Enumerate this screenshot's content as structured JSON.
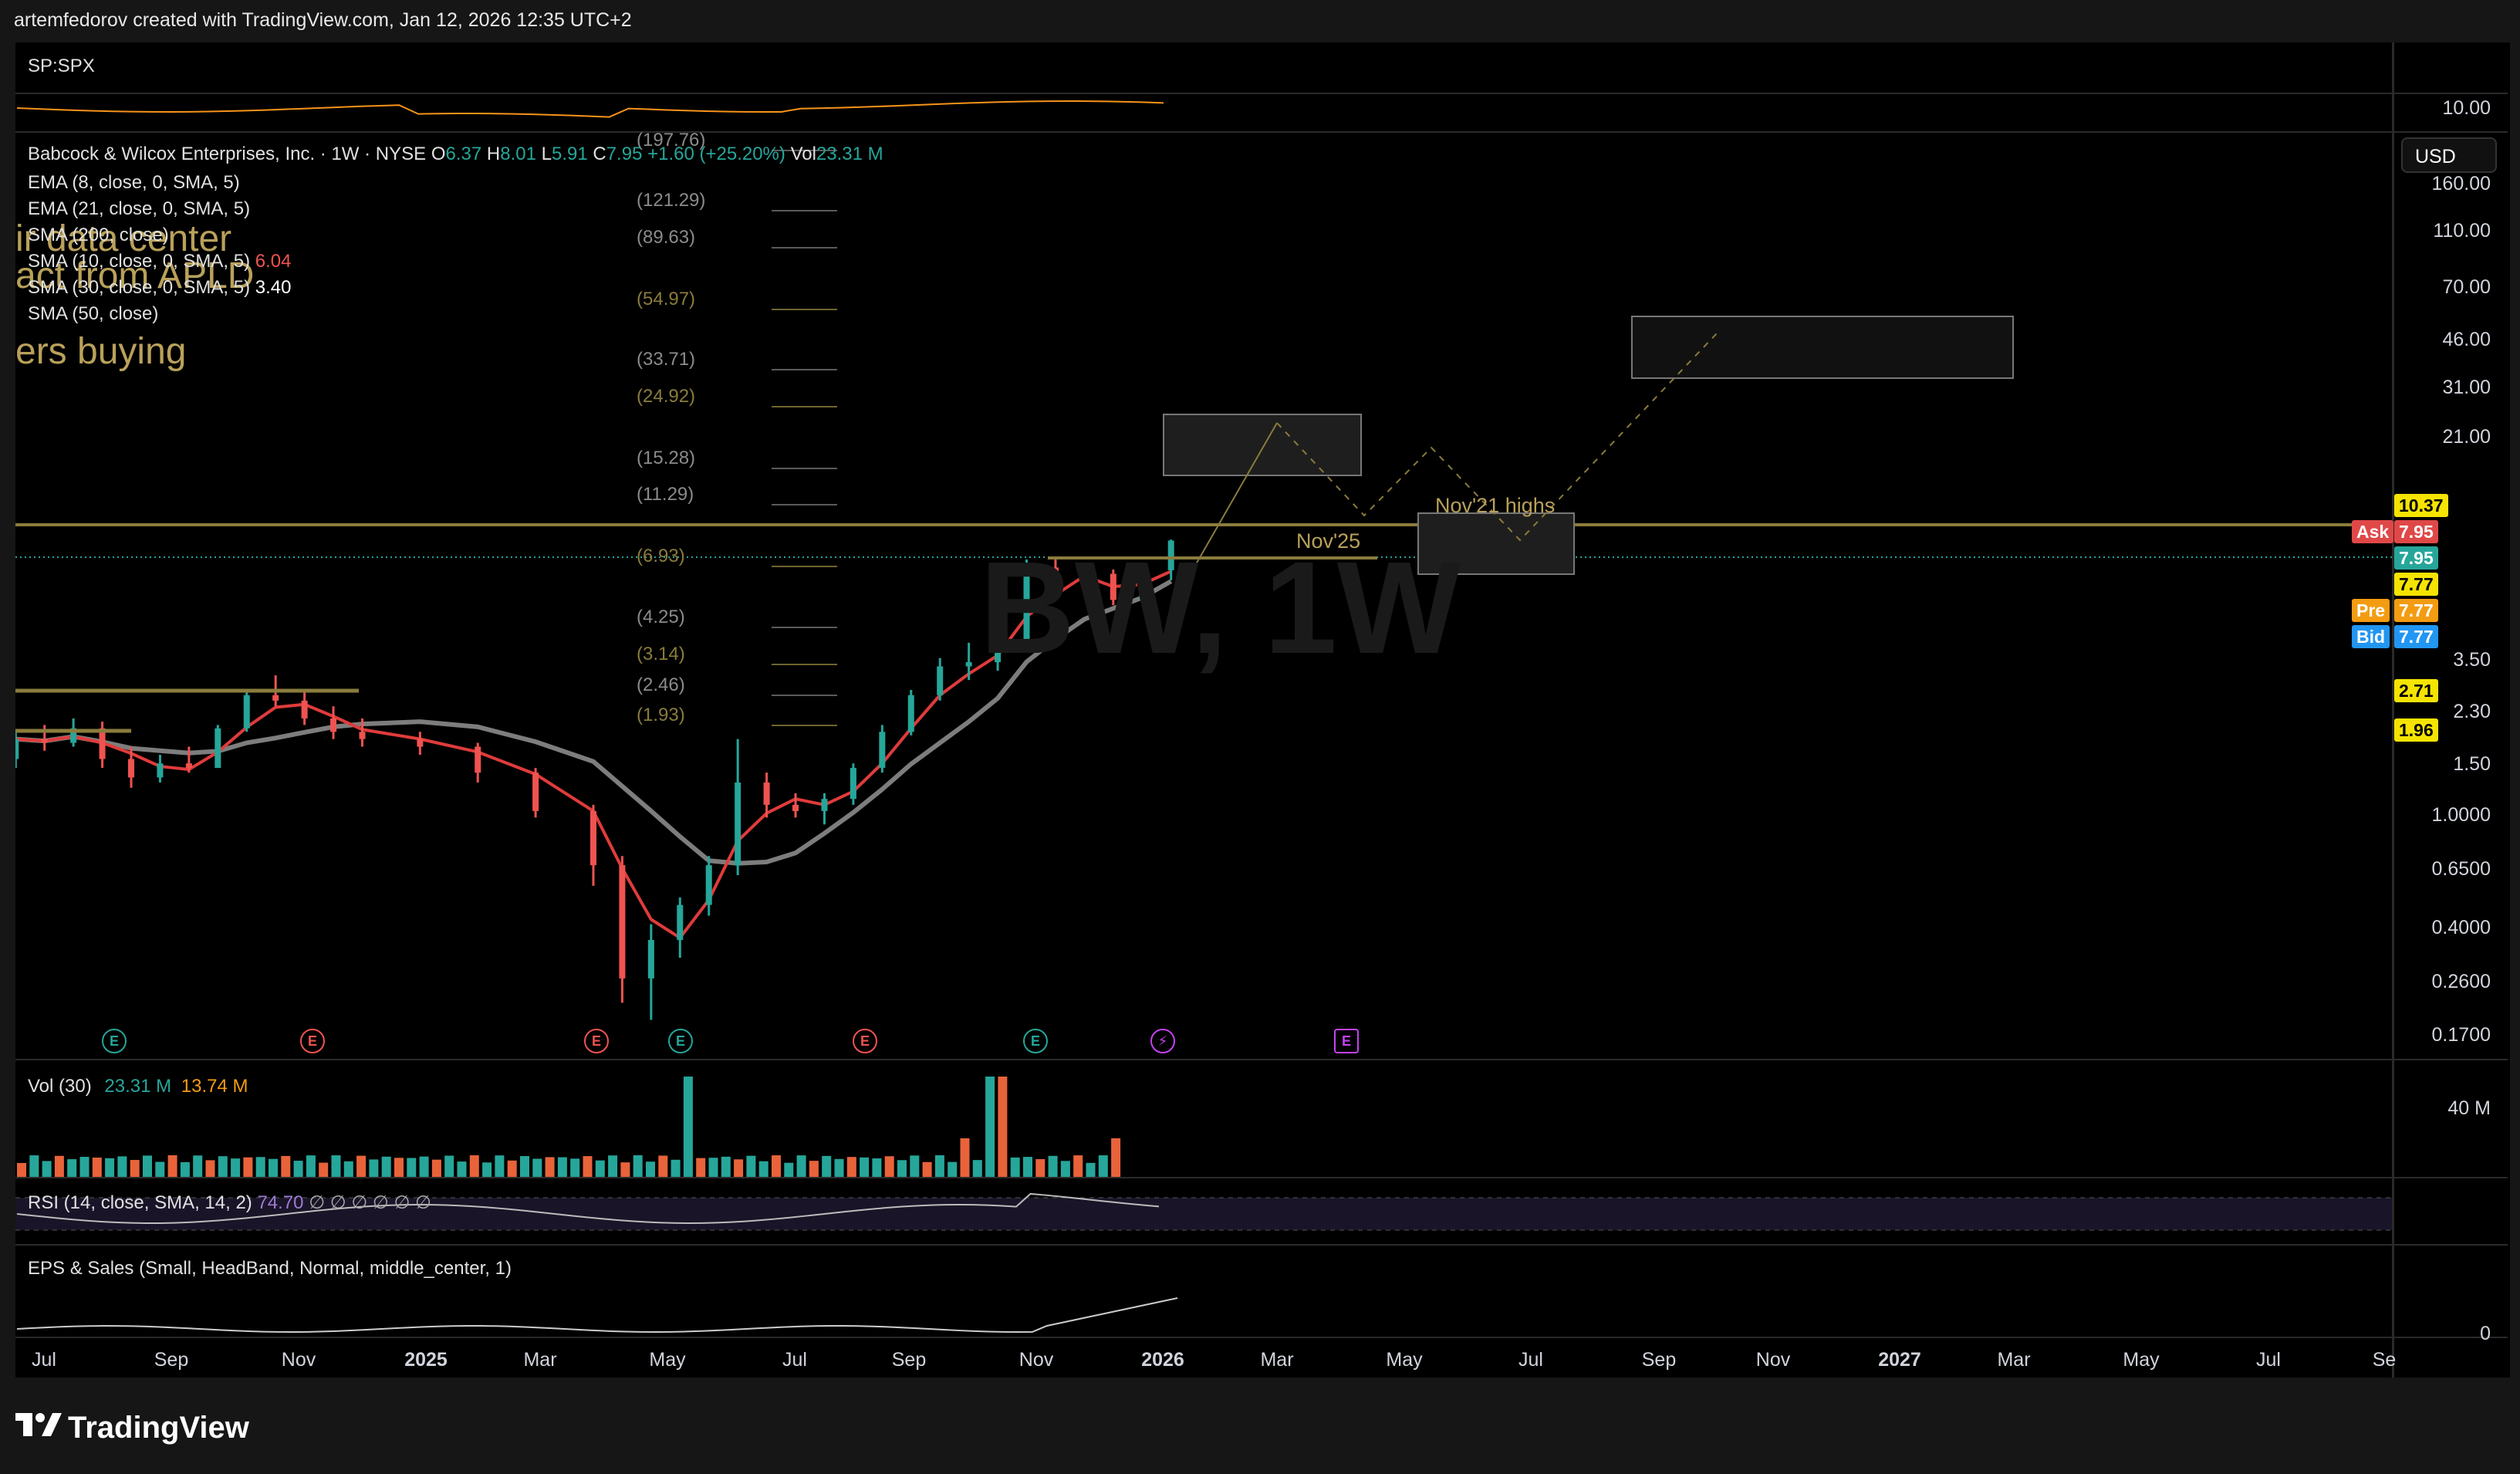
{
  "header": {
    "credit": "artemfedorov created with TradingView.com, Jan 12, 2026 12:35 UTC+2"
  },
  "compare_pane": {
    "symbol": "SP:SPX"
  },
  "legend": {
    "title": "Babcock & Wilcox Enterprises, Inc. · 1W · NYSE",
    "open_label": "O",
    "open": "6.37",
    "high_label": "H",
    "high": "8.01",
    "low_label": "L",
    "low": "5.91",
    "close_label": "C",
    "close": "7.95",
    "change": "+1.60 (+25.20%)",
    "vol_label": "Vol",
    "vol": "23.31 M",
    "indicators": [
      {
        "label": "EMA (8, close, 0, SMA, 5)",
        "value": ""
      },
      {
        "label": "EMA (21, close, 0, SMA, 5)",
        "value": ""
      },
      {
        "label": "SMA (200, close)",
        "value": ""
      },
      {
        "label": "SMA (10, close, 0, SMA, 5)",
        "value": "6.04"
      },
      {
        "label": "SMA (30, close, 0, SMA, 5)",
        "value": "3.40"
      },
      {
        "label": "SMA (50, close)",
        "value": ""
      }
    ]
  },
  "annotations": {
    "text1": "ir data center",
    "text2": "act from APLD",
    "text3": "ers buying",
    "nov25": "Nov'25",
    "nov21": "Nov'21 highs",
    "watermark": "BW, 1W"
  },
  "fib_levels": [
    "(197.76)",
    "(121.29)",
    "(89.63)",
    "(54.97)",
    "(33.71)",
    "(24.92)",
    "(15.28)",
    "(11.29)",
    "(6.93)",
    "(4.25)",
    "(3.14)",
    "(2.46)",
    "(1.93)"
  ],
  "price_axis": {
    "currency": "USD",
    "ticks": [
      "10.00",
      "160.00",
      "110.00",
      "70.00",
      "46.00",
      "31.00",
      "21.00",
      "3.50",
      "2.30",
      "1.50",
      "1.0000",
      "0.6500",
      "0.4000",
      "0.2600",
      "0.1700",
      "40 M",
      "0"
    ],
    "tags": {
      "level_1037": "10.37",
      "ask_label": "Ask",
      "ask": "7.95",
      "last": "7.95",
      "level_777": "7.77",
      "pre_label": "Pre",
      "pre": "7.77",
      "bid_label": "Bid",
      "bid": "7.77",
      "level_271": "2.71",
      "level_196": "1.96"
    }
  },
  "time_axis": {
    "ticks": [
      "Jul",
      "Sep",
      "Nov",
      "2025",
      "Mar",
      "May",
      "Jul",
      "Sep",
      "Nov",
      "2026",
      "Mar",
      "May",
      "Jul",
      "Sep",
      "Nov",
      "2027",
      "Mar",
      "May",
      "Jul",
      "Se"
    ]
  },
  "volume_pane": {
    "label": "Vol (30)",
    "v1": "23.31 M",
    "v2": "13.74 M"
  },
  "rsi_pane": {
    "label": "RSI (14, close, SMA, 14, 2)",
    "value": "74.70",
    "extra": "∅ ∅ ∅ ∅ ∅ ∅"
  },
  "eps_pane": {
    "label": "EPS & Sales (Small, HeadBand, Normal, middle_center, 1)"
  },
  "earnings_markers": [
    "E",
    "E",
    "E",
    "E",
    "E",
    "E",
    "⚡",
    "E"
  ],
  "brand": "TradingView",
  "colors": {
    "up": "#26a69a",
    "down": "#ef5350",
    "ema8": "#e03b3b",
    "sma30": "#7d7d7d",
    "fib_line": "#8a7c3c",
    "spx_line": "#f7931a"
  },
  "chart_data": {
    "type": "candlestick",
    "title": "Babcock & Wilcox Enterprises, Inc. · 1W · NYSE",
    "scale": "log",
    "x_range": [
      "2024-07",
      "2027-09"
    ],
    "candles": [
      {
        "t": "2024-06-24",
        "o": 1.55,
        "h": 1.9,
        "l": 1.45,
        "c": 1.8
      },
      {
        "t": "2024-07-08",
        "o": 1.8,
        "h": 2.0,
        "l": 1.65,
        "c": 1.75
      },
      {
        "t": "2024-07-22",
        "o": 1.75,
        "h": 2.1,
        "l": 1.7,
        "c": 1.95
      },
      {
        "t": "2024-08-05",
        "o": 1.95,
        "h": 2.05,
        "l": 1.45,
        "c": 1.55
      },
      {
        "t": "2024-08-19",
        "o": 1.55,
        "h": 1.7,
        "l": 1.25,
        "c": 1.35
      },
      {
        "t": "2024-09-02",
        "o": 1.35,
        "h": 1.6,
        "l": 1.3,
        "c": 1.5
      },
      {
        "t": "2024-09-16",
        "o": 1.5,
        "h": 1.7,
        "l": 1.4,
        "c": 1.45
      },
      {
        "t": "2024-09-30",
        "o": 1.45,
        "h": 2.0,
        "l": 1.45,
        "c": 1.95
      },
      {
        "t": "2024-10-14",
        "o": 1.95,
        "h": 2.6,
        "l": 1.9,
        "c": 2.5
      },
      {
        "t": "2024-10-28",
        "o": 2.5,
        "h": 2.9,
        "l": 2.3,
        "c": 2.4
      },
      {
        "t": "2024-11-11",
        "o": 2.4,
        "h": 2.6,
        "l": 2.0,
        "c": 2.1
      },
      {
        "t": "2024-11-25",
        "o": 2.1,
        "h": 2.3,
        "l": 1.8,
        "c": 1.9
      },
      {
        "t": "2024-12-09",
        "o": 1.9,
        "h": 2.1,
        "l": 1.7,
        "c": 1.8
      },
      {
        "t": "2025-01-06",
        "o": 1.8,
        "h": 1.9,
        "l": 1.6,
        "c": 1.7
      },
      {
        "t": "2025-02-03",
        "o": 1.7,
        "h": 1.75,
        "l": 1.3,
        "c": 1.4
      },
      {
        "t": "2025-03-03",
        "o": 1.4,
        "h": 1.45,
        "l": 1.0,
        "c": 1.05
      },
      {
        "t": "2025-03-31",
        "o": 1.05,
        "h": 1.1,
        "l": 0.6,
        "c": 0.7
      },
      {
        "t": "2025-04-14",
        "o": 0.7,
        "h": 0.75,
        "l": 0.25,
        "c": 0.3
      },
      {
        "t": "2025-04-28",
        "o": 0.3,
        "h": 0.45,
        "l": 0.22,
        "c": 0.4
      },
      {
        "t": "2025-05-12",
        "o": 0.4,
        "h": 0.55,
        "l": 0.35,
        "c": 0.52
      },
      {
        "t": "2025-05-26",
        "o": 0.52,
        "h": 0.75,
        "l": 0.48,
        "c": 0.7
      },
      {
        "t": "2025-06-09",
        "o": 0.7,
        "h": 1.8,
        "l": 0.65,
        "c": 1.3
      },
      {
        "t": "2025-06-23",
        "o": 1.3,
        "h": 1.4,
        "l": 1.0,
        "c": 1.1
      },
      {
        "t": "2025-07-07",
        "o": 1.1,
        "h": 1.2,
        "l": 1.0,
        "c": 1.05
      },
      {
        "t": "2025-07-21",
        "o": 1.05,
        "h": 1.2,
        "l": 0.95,
        "c": 1.15
      },
      {
        "t": "2025-08-04",
        "o": 1.15,
        "h": 1.5,
        "l": 1.1,
        "c": 1.45
      },
      {
        "t": "2025-08-18",
        "o": 1.45,
        "h": 2.0,
        "l": 1.4,
        "c": 1.9
      },
      {
        "t": "2025-09-01",
        "o": 1.9,
        "h": 2.6,
        "l": 1.85,
        "c": 2.5
      },
      {
        "t": "2025-09-15",
        "o": 2.5,
        "h": 3.3,
        "l": 2.4,
        "c": 3.1
      },
      {
        "t": "2025-09-29",
        "o": 3.1,
        "h": 3.7,
        "l": 2.8,
        "c": 3.2
      },
      {
        "t": "2025-10-13",
        "o": 3.2,
        "h": 4.0,
        "l": 3.0,
        "c": 3.8
      },
      {
        "t": "2025-10-27",
        "o": 3.8,
        "h": 6.9,
        "l": 3.7,
        "c": 6.5
      },
      {
        "t": "2025-11-10",
        "o": 6.5,
        "h": 7.0,
        "l": 5.2,
        "c": 5.6
      },
      {
        "t": "2025-11-24",
        "o": 5.6,
        "h": 6.6,
        "l": 5.4,
        "c": 6.2
      },
      {
        "t": "2025-12-08",
        "o": 6.2,
        "h": 6.4,
        "l": 4.9,
        "c": 5.1
      },
      {
        "t": "2025-12-22",
        "o": 5.1,
        "h": 6.0,
        "l": 5.0,
        "c": 5.9
      },
      {
        "t": "2026-01-05",
        "o": 6.37,
        "h": 8.01,
        "l": 5.91,
        "c": 7.95
      }
    ],
    "horizontal_levels": [
      10.37,
      7.77,
      2.71,
      1.96
    ],
    "last_price": 7.95,
    "fibonacci_extension": [
      197.76,
      121.29,
      89.63,
      54.97,
      33.71,
      24.92,
      15.28,
      11.29,
      6.93,
      4.25,
      3.14,
      2.46,
      1.93
    ]
  }
}
